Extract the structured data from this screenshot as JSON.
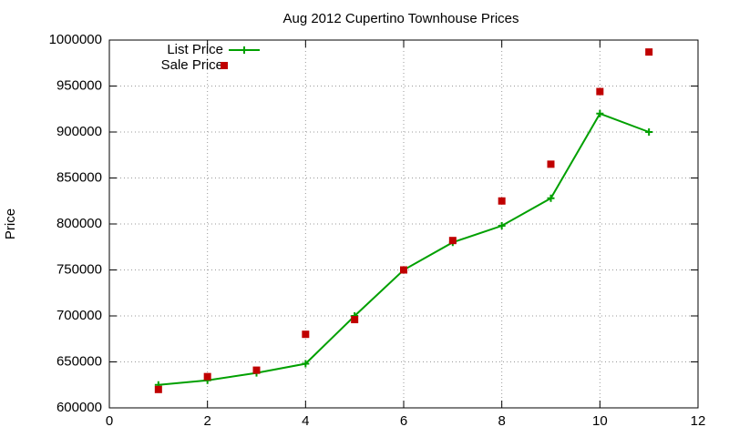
{
  "chart_data": {
    "type": "line",
    "title": "Aug 2012 Cupertino Townhouse Prices",
    "ylabel": "Price",
    "x": [
      1,
      2,
      3,
      4,
      5,
      6,
      7,
      8,
      9,
      10,
      11
    ],
    "series": [
      {
        "name": "List Price",
        "color": "#00a000",
        "style": "linespoints",
        "values": [
          625000,
          630000,
          638000,
          648000,
          700000,
          750000,
          780000,
          798000,
          828000,
          920000,
          900000
        ]
      },
      {
        "name": "Sale Price",
        "color": "#c00000",
        "style": "points",
        "values": [
          620000,
          634000,
          641000,
          680000,
          696000,
          750000,
          782000,
          825000,
          865000,
          944000,
          987000
        ]
      }
    ],
    "xlim": [
      0,
      12
    ],
    "xticks": [
      0,
      2,
      4,
      6,
      8,
      10,
      12
    ],
    "ylim": [
      600000,
      1000000
    ],
    "yticks": [
      600000,
      650000,
      700000,
      750000,
      800000,
      850000,
      900000,
      950000,
      1000000
    ],
    "grid": true,
    "legend": "top-left"
  }
}
